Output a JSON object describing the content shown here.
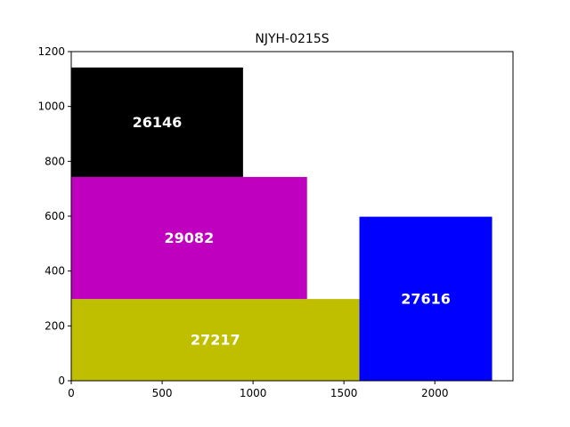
{
  "chart_data": {
    "type": "treemap-rectangles",
    "title": "NJYH-0215S",
    "xlim": [
      0,
      2430
    ],
    "ylim": [
      0,
      1200
    ],
    "x_ticks": [
      0,
      500,
      1000,
      1500,
      2000
    ],
    "y_ticks": [
      0,
      200,
      400,
      600,
      800,
      1000,
      1200
    ],
    "grid": false,
    "boxes": [
      {
        "label": "27217",
        "x0": 0,
        "x1": 1585,
        "y0": 0,
        "y1": 298,
        "color": "#bfbf00"
      },
      {
        "label": "29082",
        "x0": 0,
        "x1": 1297,
        "y0": 298,
        "y1": 743,
        "color": "#bf00bf"
      },
      {
        "label": "26146",
        "x0": 0,
        "x1": 945,
        "y0": 743,
        "y1": 1142,
        "color": "#000000"
      },
      {
        "label": "27616",
        "x0": 1585,
        "x1": 2315,
        "y0": 0,
        "y1": 598,
        "color": "#0000ff"
      }
    ]
  }
}
